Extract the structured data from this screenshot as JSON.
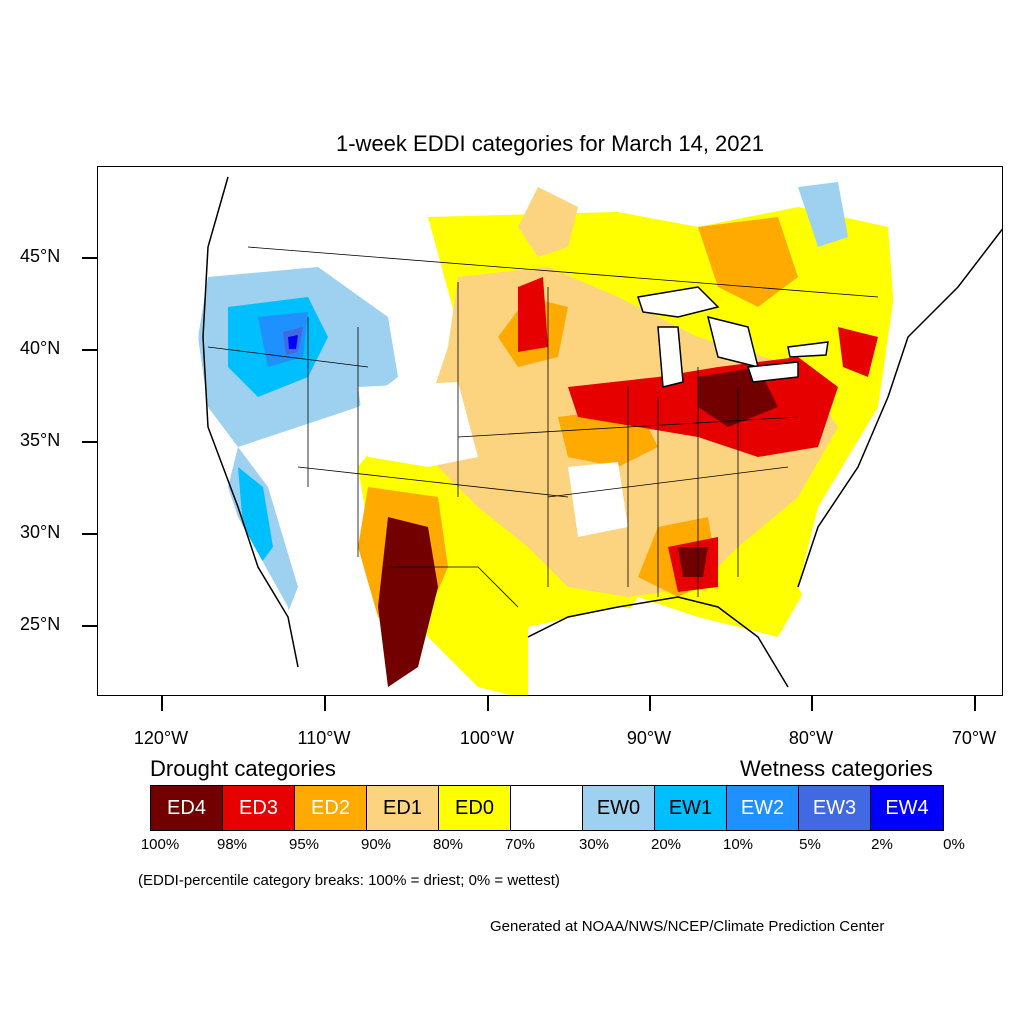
{
  "title": "1-week EDDI categories for March 14, 2021",
  "lat_labels": [
    "45°N",
    "40°N",
    "35°N",
    "30°N",
    "25°N"
  ],
  "lon_labels": [
    "120°W",
    "110°W",
    "100°W",
    "90°W",
    "80°W",
    "70°W"
  ],
  "legend": {
    "drought_heading": "Drought categories",
    "wetness_heading": "Wetness categories",
    "categories": [
      {
        "label": "ED4",
        "color": "#730000",
        "text_color": "#ffffff"
      },
      {
        "label": "ED3",
        "color": "#e60000",
        "text_color": "#ffffff"
      },
      {
        "label": "ED2",
        "color": "#ffaa00",
        "text_color": "#ffffff"
      },
      {
        "label": "ED1",
        "color": "#fcd37f",
        "text_color": "#000000"
      },
      {
        "label": "ED0",
        "color": "#ffff00",
        "text_color": "#000000"
      },
      {
        "label": "",
        "color": "#ffffff",
        "text_color": "#000000"
      },
      {
        "label": "EW0",
        "color": "#9ed0f0",
        "text_color": "#000000"
      },
      {
        "label": "EW1",
        "color": "#00bfff",
        "text_color": "#000000"
      },
      {
        "label": "EW2",
        "color": "#1e90ff",
        "text_color": "#ffffff"
      },
      {
        "label": "EW3",
        "color": "#4169e1",
        "text_color": "#ffffff"
      },
      {
        "label": "EW4",
        "color": "#0000ff",
        "text_color": "#ffffff"
      }
    ],
    "percentiles": [
      "100%",
      "98%",
      "95%",
      "90%",
      "80%",
      "70%",
      "30%",
      "20%",
      "10%",
      "5%",
      "2%",
      "0%"
    ]
  },
  "note": "(EDDI-percentile category breaks: 100% = driest; 0% = wettest)",
  "credit": "Generated at NOAA/NWS/NCEP/Climate Prediction Center"
}
